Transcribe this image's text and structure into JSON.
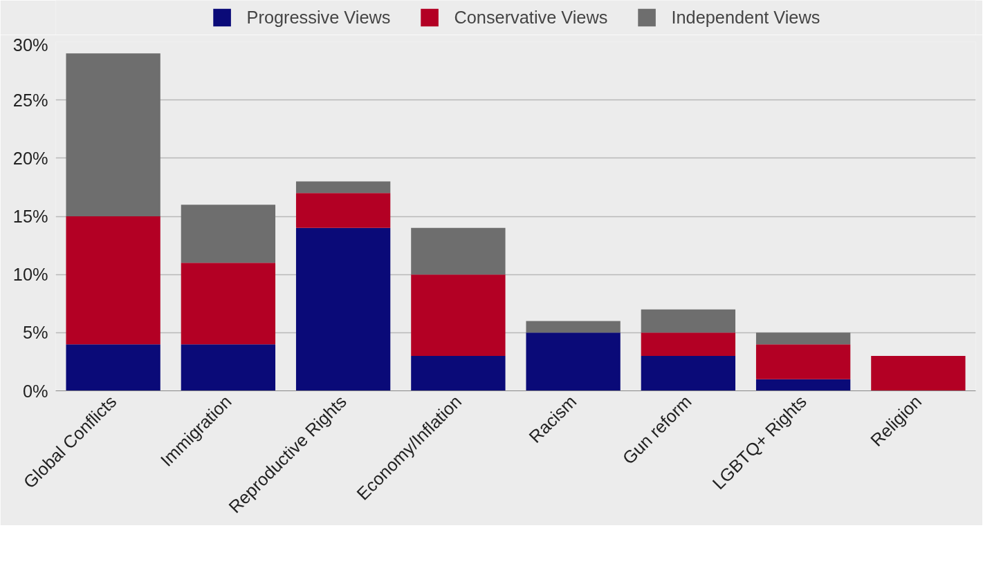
{
  "chart_data": {
    "type": "bar",
    "stacked": true,
    "categories": [
      "Global Conflicts",
      "Immigration",
      "Reproductive Rights",
      "Economy/Inflation",
      "Racism",
      "Gun reform",
      "LGBTQ+ Rights",
      "Religion"
    ],
    "series": [
      {
        "name": "Progressive Views",
        "color": "#0a0a78",
        "values": [
          4,
          4,
          14,
          3,
          5,
          3,
          1,
          0
        ]
      },
      {
        "name": "Conservative Views",
        "color": "#b30024",
        "values": [
          11,
          7,
          3,
          7,
          0,
          2,
          3,
          3
        ]
      },
      {
        "name": "Independent Views",
        "color": "#6e6e6e",
        "values": [
          14,
          5,
          1,
          4,
          1,
          2,
          1,
          0
        ]
      }
    ],
    "ylim": [
      0,
      30
    ],
    "yticks": [
      {
        "value": 0,
        "label": "0%"
      },
      {
        "value": 5,
        "label": "5%"
      },
      {
        "value": 10,
        "label": "10%"
      },
      {
        "value": 15,
        "label": "15%"
      },
      {
        "value": 20,
        "label": "20%"
      },
      {
        "value": 25,
        "label": "25%"
      },
      {
        "value": 30,
        "label": "30%"
      }
    ],
    "grid": "y",
    "legend": "top"
  }
}
